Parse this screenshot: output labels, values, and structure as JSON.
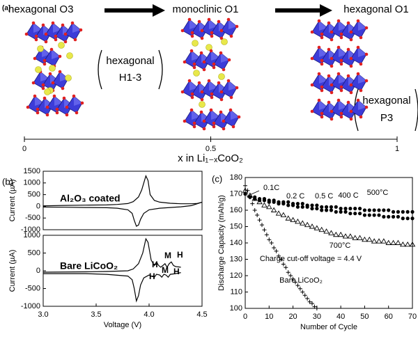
{
  "diagram": {
    "panel": "(a)",
    "phases": [
      "hexagonal O3",
      "monoclinic O1",
      "hexagonal O1"
    ],
    "intermediates": [
      {
        "name": "hexagonal",
        "sub": "H1-3"
      },
      {
        "name": "hexagonal",
        "sub": "P3"
      }
    ],
    "axis": {
      "label": "x in Li₁₋ₓCoO₂",
      "xlim": [
        0,
        1
      ],
      "xticks": [
        0,
        0.5,
        1
      ]
    }
  },
  "chart_data": [
    {
      "type": "line",
      "panel": "(b)",
      "title": "Al₂O₃ coated",
      "ylabel": "Current (µA)",
      "xlim": [
        3.0,
        4.5
      ],
      "ylim": [
        -1000,
        1500
      ],
      "yticks": [
        -1000,
        -500,
        0,
        500,
        1000,
        1500
      ],
      "series": [
        {
          "color": "#000000",
          "x": [
            3.0,
            3.2,
            3.4,
            3.6,
            3.7,
            3.8,
            3.85,
            3.9,
            3.93,
            3.95,
            3.97,
            3.99,
            4.01,
            4.05,
            4.1,
            4.2,
            4.3,
            4.4,
            4.45,
            4.5
          ],
          "values": [
            20,
            40,
            50,
            60,
            80,
            120,
            200,
            400,
            700,
            1000,
            1300,
            1100,
            500,
            250,
            180,
            130,
            110,
            110,
            120,
            180
          ]
        },
        {
          "color": "#000000",
          "x": [
            4.5,
            4.4,
            4.3,
            4.2,
            4.1,
            4.0,
            3.95,
            3.92,
            3.9,
            3.88,
            3.86,
            3.84,
            3.8,
            3.7,
            3.6,
            3.4,
            3.2,
            3.0
          ],
          "values": [
            180,
            30,
            -20,
            -50,
            -80,
            -150,
            -300,
            -550,
            -800,
            -850,
            -600,
            -300,
            -150,
            -80,
            -60,
            -50,
            -40,
            -30
          ]
        }
      ]
    },
    {
      "type": "line",
      "title": "Bare LiCoO₂",
      "ylabel": "Current (µA)",
      "xlabel": "Voltage (V)",
      "xlim": [
        3.0,
        4.5
      ],
      "xticks": [
        {
          "value": 3.0,
          "label": "3.0"
        },
        3.5,
        {
          "value": 4.0,
          "label": "4.0"
        },
        4.5
      ],
      "ylim": [
        -1000,
        1000
      ],
      "yticks": [
        -1000,
        -500,
        0,
        500,
        1000
      ],
      "annotations": [
        "H",
        "M",
        "H",
        "H",
        "M",
        "H"
      ],
      "series": [
        {
          "color": "#000000",
          "x": [
            3.0,
            3.4,
            3.6,
            3.8,
            3.85,
            3.9,
            3.94,
            3.97,
            3.99,
            4.02,
            4.05,
            4.07,
            4.09,
            4.11,
            4.13,
            4.15,
            4.17,
            4.19,
            4.21,
            4.23,
            4.25,
            4.3
          ],
          "values": [
            -40,
            -30,
            -20,
            0,
            50,
            200,
            500,
            900,
            800,
            300,
            150,
            250,
            150,
            100,
            150,
            200,
            100,
            200,
            250,
            150,
            120,
            100
          ]
        },
        {
          "color": "#000000",
          "x": [
            4.3,
            4.25,
            4.2,
            4.18,
            4.16,
            4.14,
            4.12,
            4.1,
            4.07,
            4.05,
            4.02,
            4.0,
            3.95,
            3.92,
            3.9,
            3.88,
            3.86,
            3.84,
            3.8,
            3.6,
            3.4,
            3.0
          ],
          "values": [
            -50,
            -80,
            -100,
            -180,
            -120,
            -100,
            -180,
            -120,
            -100,
            -180,
            -150,
            -120,
            -200,
            -400,
            -700,
            -850,
            -500,
            -250,
            -150,
            -100,
            -80,
            -80
          ]
        }
      ]
    },
    {
      "type": "scatter",
      "panel": "(c)",
      "xlabel": "Number of Cycle",
      "ylabel": "Discharge Capacity (mAh/g)",
      "xlim": [
        0,
        70
      ],
      "xticks": [
        0,
        10,
        20,
        30,
        40,
        50,
        60,
        70
      ],
      "ylim": [
        100,
        180
      ],
      "yticks": [
        100,
        110,
        120,
        130,
        140,
        150,
        160,
        170,
        180
      ],
      "annotations": [
        "0.1C",
        "0.2 C",
        "0.5 C",
        "Charge cut-off voltage = 4.4 V"
      ],
      "series": [
        {
          "name": "400 C",
          "color": "#000000",
          "marker": "circle",
          "x": [
            0,
            2,
            4,
            6,
            8,
            10,
            12,
            14,
            16,
            18,
            20,
            22,
            24,
            26,
            28,
            30,
            32,
            34,
            36,
            38,
            40,
            42,
            44,
            46,
            48,
            50,
            52,
            54,
            56,
            58,
            60,
            62,
            64,
            66,
            68,
            70
          ],
          "values": [
            170,
            168,
            168,
            167,
            167,
            166,
            166,
            165,
            165,
            165,
            164,
            164,
            164,
            163,
            163,
            163,
            162,
            162,
            162,
            162,
            161,
            161,
            161,
            161,
            161,
            160,
            160,
            160,
            160,
            160,
            160,
            159,
            159,
            159,
            159,
            159
          ]
        },
        {
          "name": "500°C",
          "color": "#000000",
          "marker": "circle",
          "x": [
            0,
            2,
            4,
            6,
            8,
            10,
            12,
            14,
            16,
            18,
            20,
            22,
            24,
            26,
            28,
            30,
            32,
            34,
            36,
            38,
            40,
            42,
            44,
            46,
            48,
            50,
            52,
            54,
            56,
            58,
            60,
            62,
            64,
            66,
            68,
            70
          ],
          "values": [
            170,
            168,
            167,
            166,
            166,
            165,
            165,
            164,
            164,
            163,
            163,
            162,
            162,
            162,
            161,
            161,
            160,
            160,
            160,
            159,
            159,
            159,
            158,
            158,
            158,
            157,
            157,
            157,
            157,
            156,
            156,
            156,
            156,
            155,
            155,
            155
          ]
        },
        {
          "name": "700°C",
          "color": "#000000",
          "marker": "triangle-open",
          "x": [
            0,
            2,
            4,
            6,
            8,
            10,
            12,
            14,
            16,
            18,
            20,
            22,
            24,
            26,
            28,
            30,
            32,
            34,
            36,
            38,
            40,
            42,
            44,
            46,
            48,
            50,
            52,
            54,
            56,
            58,
            60,
            62,
            64,
            66,
            68,
            70
          ],
          "values": [
            172,
            169,
            167,
            165,
            163,
            162,
            160,
            158,
            157,
            155,
            154,
            153,
            152,
            151,
            150,
            149,
            148,
            147,
            146,
            145,
            145,
            144,
            144,
            143,
            143,
            142,
            142,
            141,
            141,
            141,
            140,
            140,
            140,
            139,
            139,
            139
          ]
        },
        {
          "name": "Bare LiCoO₂",
          "color": "#000000",
          "marker": "plus",
          "x": [
            0,
            1,
            2,
            3,
            4,
            5,
            6,
            7,
            8,
            9,
            10,
            11,
            12,
            13,
            14,
            15,
            16,
            17,
            18,
            19,
            20,
            21,
            22,
            23,
            24,
            25,
            26,
            27,
            28,
            29,
            30
          ],
          "values": [
            175,
            172,
            168,
            164,
            160,
            157,
            154,
            151,
            148,
            145,
            142,
            140,
            137,
            135,
            132,
            130,
            127,
            125,
            122,
            120,
            118,
            116,
            114,
            112,
            110,
            108,
            106,
            104,
            103,
            101,
            100
          ]
        }
      ]
    }
  ]
}
